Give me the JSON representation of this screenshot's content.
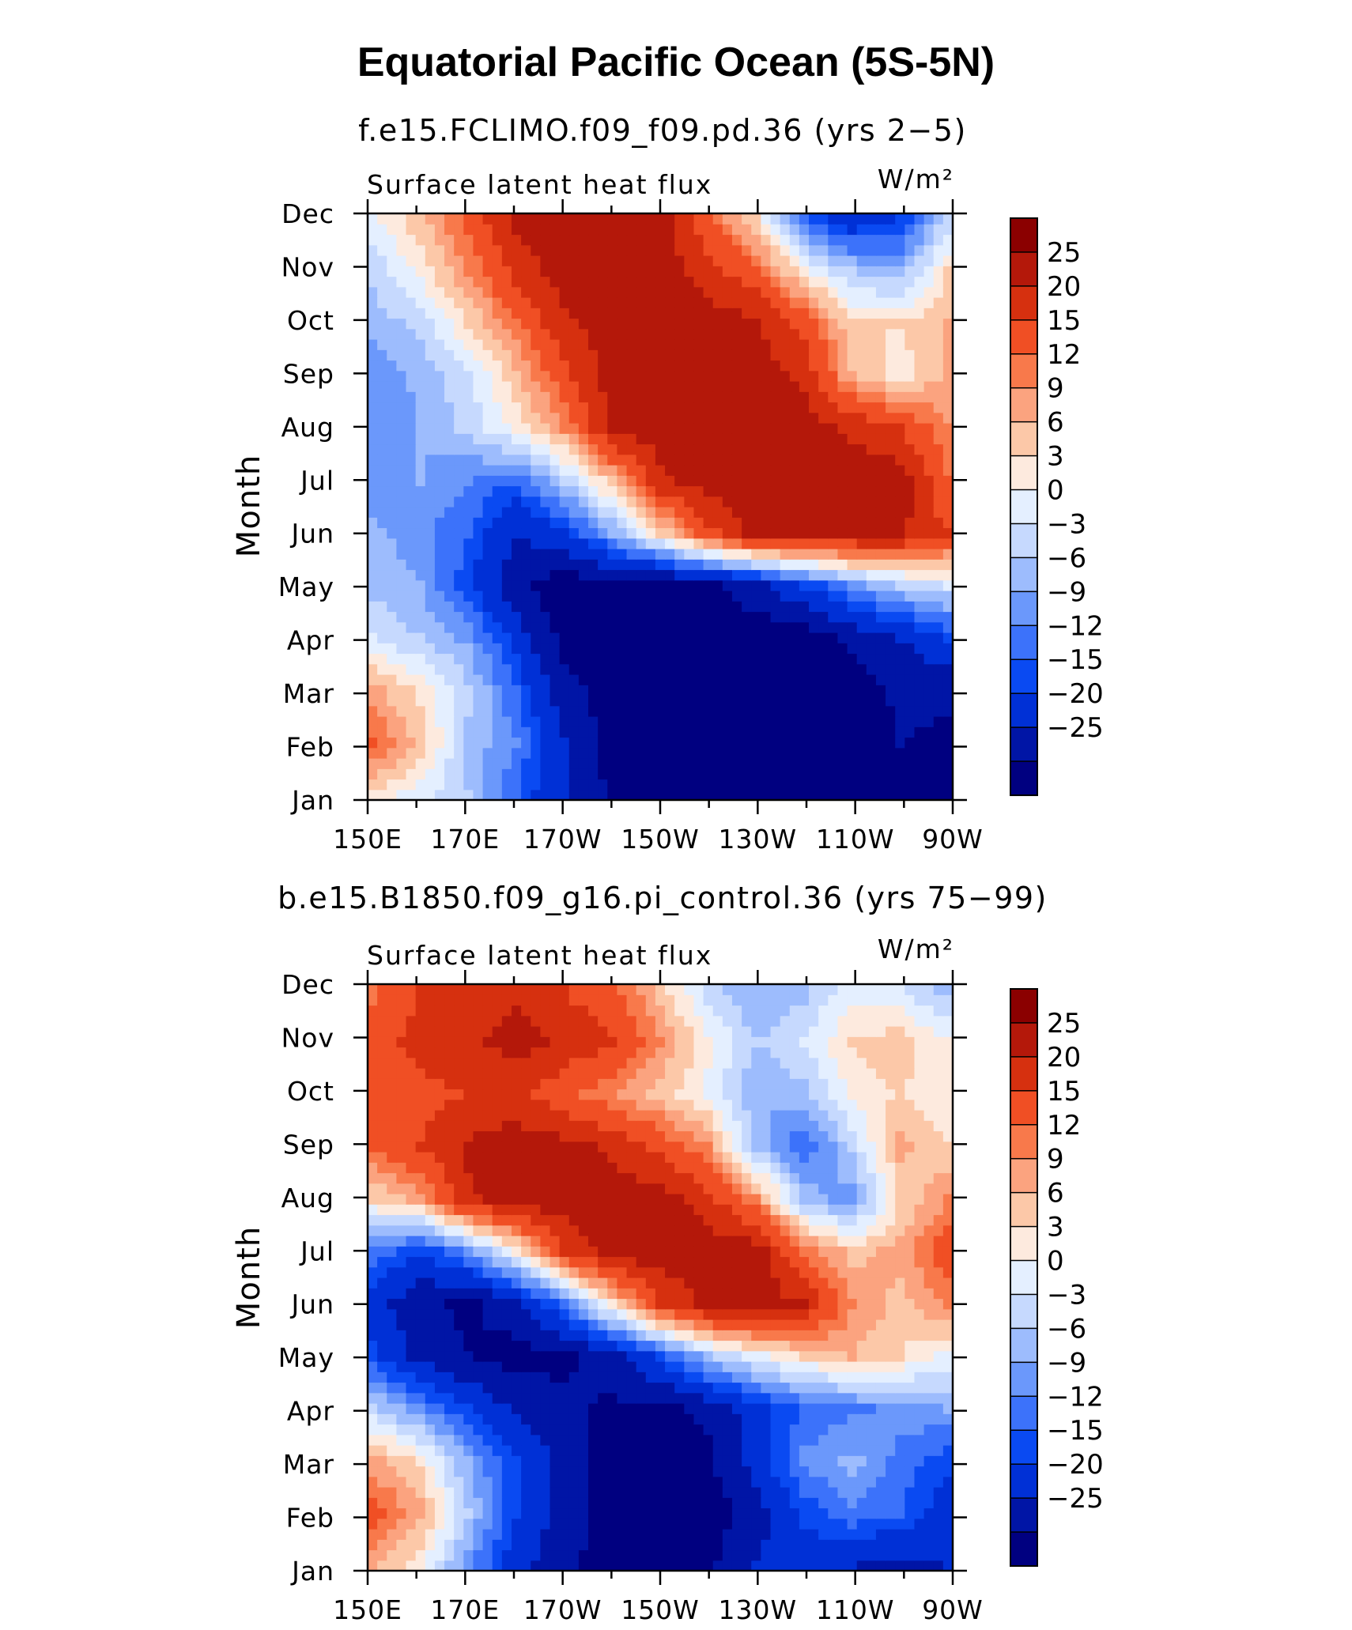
{
  "figure": {
    "title": "Equatorial Pacific Ocean (5S-5N)"
  },
  "colors": {
    "levels": [
      "#000080",
      "#0015a6",
      "#0030d6",
      "#0a4af2",
      "#3c72fa",
      "#6b98fb",
      "#9dbcfd",
      "#c6d9fe",
      "#e4efff",
      "#fdeade",
      "#fcc8a8",
      "#fba37f",
      "#f8794b",
      "#f04f24",
      "#d6300f",
      "#b4180a",
      "#8b0000"
    ]
  },
  "chart_data": [
    {
      "type": "heatmap",
      "subtitle": "f.e15.FCLIMO.f09_f09.pd.36 (yrs 2−5)",
      "left_label": "Surface latent heat flux",
      "units": "W/m²",
      "ylabel": "Month",
      "yticks": [
        "Jan",
        "Feb",
        "Mar",
        "Apr",
        "May",
        "Jun",
        "Jul",
        "Aug",
        "Sep",
        "Oct",
        "Nov",
        "Dec"
      ],
      "xticks": [
        "150E",
        "170E",
        "170W",
        "150W",
        "130W",
        "110W",
        "90W"
      ],
      "x": [
        150,
        160,
        170,
        180,
        190,
        200,
        210,
        220,
        230,
        240,
        250,
        260,
        270
      ],
      "y": [
        "Jan",
        "Feb",
        "Mar",
        "Apr",
        "May",
        "Jun",
        "Jul",
        "Aug",
        "Sep",
        "Oct",
        "Nov",
        "Dec"
      ],
      "z": [
        [
          5,
          1,
          -3,
          -12,
          -20,
          -26,
          -28,
          -28,
          -28,
          -28,
          -28,
          -26,
          -28
        ],
        [
          16,
          8,
          -4,
          -9,
          -20,
          -27,
          -28,
          -28,
          -28,
          -28,
          -28,
          -25,
          -26
        ],
        [
          10,
          5,
          -2,
          -12,
          -23,
          -28,
          -28,
          -28,
          -28,
          -28,
          -28,
          -24,
          -24
        ],
        [
          0,
          -3,
          -7,
          -17,
          -27,
          -28,
          -28,
          -28,
          -28,
          -28,
          -24,
          -20,
          -15
        ],
        [
          -4,
          -6,
          -14,
          -24,
          -28,
          -28,
          -28,
          -26,
          -22,
          -15,
          -8,
          -3,
          0
        ],
        [
          -5,
          -8,
          -12,
          -20,
          -16,
          -6,
          6,
          18,
          27,
          27,
          27,
          26,
          20
        ],
        [
          -9,
          -6,
          -9,
          -12,
          -3,
          8,
          24,
          28,
          28,
          28,
          28,
          28,
          15
        ],
        [
          -8,
          -6,
          -2,
          4,
          12,
          26,
          28,
          28,
          28,
          28,
          24,
          20,
          12
        ],
        [
          -9,
          -5,
          -1,
          8,
          18,
          28,
          28,
          28,
          28,
          24,
          9,
          4,
          10
        ],
        [
          -5,
          -2,
          6,
          14,
          24,
          28,
          28,
          28,
          26,
          18,
          6,
          6,
          9
        ],
        [
          -2,
          4,
          12,
          22,
          28,
          28,
          28,
          22,
          16,
          4,
          -3,
          -5,
          6
        ],
        [
          2,
          8,
          16,
          27,
          28,
          28,
          28,
          16,
          6,
          -12,
          -18,
          -15,
          -2
        ]
      ]
    },
    {
      "type": "heatmap",
      "subtitle": "b.e15.B1850.f09_g16.pi_control.36 (yrs 75−99)",
      "left_label": "Surface latent heat flux",
      "units": "W/m²",
      "ylabel": "Month",
      "yticks": [
        "Jan",
        "Feb",
        "Mar",
        "Apr",
        "May",
        "Jun",
        "Jul",
        "Aug",
        "Sep",
        "Oct",
        "Nov",
        "Dec"
      ],
      "xticks": [
        "150E",
        "170E",
        "170W",
        "150W",
        "130W",
        "110W",
        "90W"
      ],
      "x": [
        150,
        160,
        170,
        180,
        190,
        200,
        210,
        220,
        230,
        240,
        250,
        260,
        270
      ],
      "y": [
        "Jan",
        "Feb",
        "Mar",
        "Apr",
        "May",
        "Jun",
        "Jul",
        "Aug",
        "Sep",
        "Oct",
        "Nov",
        "Dec"
      ],
      "z": [
        [
          9,
          4,
          -8,
          -18,
          -24,
          -27,
          -28,
          -26,
          -20,
          -18,
          -20,
          -22,
          -20
        ],
        [
          18,
          10,
          -3,
          -15,
          -22,
          -28,
          -28,
          -28,
          -22,
          -14,
          -10,
          -12,
          -18
        ],
        [
          10,
          5,
          -6,
          -15,
          -22,
          -28,
          -28,
          -26,
          -18,
          -8,
          -5,
          -10,
          -14
        ],
        [
          -2,
          -8,
          -15,
          -21,
          -24,
          -26,
          -26,
          -24,
          -17,
          -12,
          -10,
          -8,
          -6
        ],
        [
          -14,
          -22,
          -25,
          -27,
          -26,
          -22,
          -14,
          -4,
          2,
          6,
          9,
          6,
          2
        ],
        [
          -18,
          -24,
          -26,
          -22,
          -10,
          5,
          20,
          27,
          28,
          25,
          12,
          8,
          12
        ],
        [
          -10,
          -15,
          -8,
          4,
          20,
          28,
          28,
          28,
          28,
          14,
          8,
          10,
          18
        ],
        [
          6,
          10,
          24,
          28,
          28,
          28,
          28,
          22,
          12,
          -4,
          -8,
          6,
          12
        ],
        [
          15,
          20,
          26,
          28,
          27,
          24,
          18,
          12,
          -4,
          -12,
          -2,
          10,
          6
        ],
        [
          16,
          18,
          20,
          22,
          16,
          12,
          8,
          2,
          -6,
          -4,
          4,
          6,
          4
        ],
        [
          18,
          22,
          24,
          27,
          24,
          20,
          12,
          4,
          -3,
          0,
          6,
          8,
          3
        ],
        [
          14,
          20,
          22,
          24,
          20,
          16,
          8,
          -2,
          -6,
          -4,
          2,
          0,
          -4
        ]
      ]
    }
  ],
  "colorbar": {
    "labels": [
      "25",
      "20",
      "15",
      "12",
      "9",
      "6",
      "3",
      "0",
      "−3",
      "−6",
      "−9",
      "−12",
      "−15",
      "−20",
      "−25"
    ],
    "thresholds": [
      -25,
      -20,
      -15,
      -12,
      -9,
      -6,
      -3,
      0,
      3,
      6,
      9,
      12,
      15,
      20,
      25
    ]
  }
}
